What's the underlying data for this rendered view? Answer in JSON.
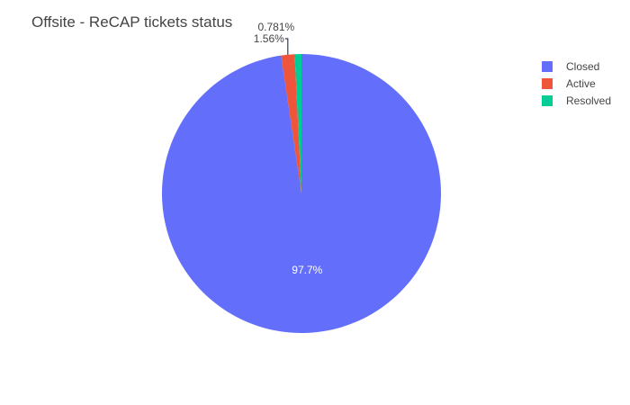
{
  "chart_data": {
    "type": "pie",
    "title": "Offsite - ReCAP tickets status",
    "direction": "clockwise",
    "start": "top",
    "legend_position": "top-right",
    "slices": [
      {
        "label": "Closed",
        "value": 97.7,
        "percent_label": "97.7%",
        "color": "#636efa",
        "label_position": "inside"
      },
      {
        "label": "Active",
        "value": 1.56,
        "percent_label": "1.56%",
        "color": "#ef553b",
        "label_position": "outside"
      },
      {
        "label": "Resolved",
        "value": 0.781,
        "percent_label": "0.781%",
        "color": "#00cc96",
        "label_position": "outside"
      }
    ]
  }
}
